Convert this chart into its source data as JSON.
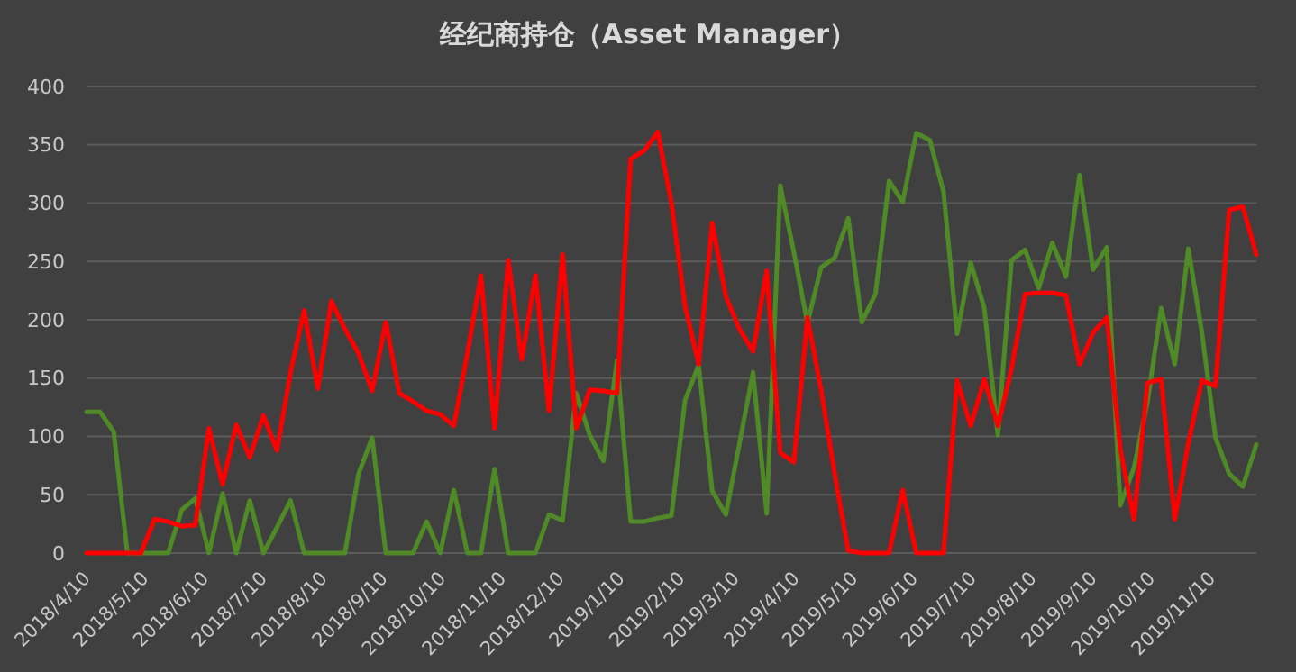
{
  "chart_data": {
    "type": "line",
    "title": "经纪商持仓（Asset Manager）",
    "x": [
      "2018-04-10",
      "2018-04-17",
      "2018-04-24",
      "2018-05-01",
      "2018-05-08",
      "2018-05-15",
      "2018-05-22",
      "2018-05-29",
      "2018-06-05",
      "2018-06-12",
      "2018-06-19",
      "2018-06-26",
      "2018-07-03",
      "2018-07-10",
      "2018-07-17",
      "2018-07-24",
      "2018-07-31",
      "2018-08-07",
      "2018-08-14",
      "2018-08-21",
      "2018-08-28",
      "2018-09-04",
      "2018-09-11",
      "2018-09-18",
      "2018-09-25",
      "2018-10-02",
      "2018-10-09",
      "2018-10-16",
      "2018-10-23",
      "2018-10-30",
      "2018-11-06",
      "2018-11-13",
      "2018-11-20",
      "2018-11-27",
      "2018-12-04",
      "2018-12-11",
      "2018-12-18",
      "2018-12-25",
      "2019-01-01",
      "2019-01-08",
      "2019-01-15",
      "2019-01-22",
      "2019-01-29",
      "2019-02-05",
      "2019-02-12",
      "2019-02-19",
      "2019-02-26",
      "2019-03-05",
      "2019-03-12",
      "2019-03-19",
      "2019-03-26",
      "2019-04-02",
      "2019-04-09",
      "2019-04-16",
      "2019-04-23",
      "2019-04-30",
      "2019-05-07",
      "2019-05-14",
      "2019-05-21",
      "2019-05-28",
      "2019-06-04",
      "2019-06-11",
      "2019-06-18",
      "2019-06-25",
      "2019-07-02",
      "2019-07-09",
      "2019-07-16",
      "2019-07-23",
      "2019-07-30",
      "2019-08-06",
      "2019-08-13",
      "2019-08-20",
      "2019-08-27",
      "2019-09-03",
      "2019-09-10",
      "2019-09-17",
      "2019-09-24",
      "2019-10-01",
      "2019-10-08",
      "2019-10-15",
      "2019-10-22",
      "2019-10-29",
      "2019-11-05",
      "2019-11-12",
      "2019-11-19",
      "2019-11-26",
      "2019-12-03"
    ],
    "series": [
      {
        "color": "#4f8a26",
        "values": [
          121,
          121,
          104,
          0,
          0,
          0,
          0,
          37,
          47,
          0,
          51,
          0,
          45,
          0,
          22,
          45,
          0,
          0,
          0,
          0,
          68,
          99,
          0,
          0,
          0,
          27,
          0,
          54,
          0,
          0,
          72,
          0,
          0,
          0,
          33,
          28,
          137,
          101,
          79,
          165,
          27,
          27,
          30,
          32,
          131,
          161,
          53,
          33,
          94,
          155,
          34,
          315,
          258,
          197,
          245,
          253,
          287,
          198,
          222,
          319,
          301,
          360,
          354,
          310,
          188,
          249,
          210,
          101,
          251,
          260,
          227,
          266,
          237,
          324,
          243,
          262,
          41,
          73,
          130,
          210,
          162,
          261,
          189,
          99,
          68,
          57,
          93
        ]
      },
      {
        "color": "#ff0000",
        "values": [
          0,
          0,
          0,
          0,
          0,
          29,
          27,
          23,
          24,
          107,
          59,
          110,
          82,
          118,
          88,
          155,
          208,
          141,
          216,
          192,
          171,
          139,
          198,
          137,
          130,
          122,
          119,
          109,
          171,
          238,
          107,
          251,
          166,
          238,
          122,
          256,
          107,
          140,
          139,
          137,
          338,
          345,
          361,
          300,
          212,
          162,
          283,
          220,
          192,
          173,
          242,
          86,
          78,
          202,
          140,
          68,
          2,
          0,
          0,
          0,
          54,
          0,
          0,
          0,
          148,
          109,
          149,
          109,
          158,
          222,
          223,
          223,
          221,
          162,
          189,
          202,
          89,
          29,
          146,
          149,
          29,
          94,
          148,
          143,
          294,
          297,
          256
        ]
      }
    ],
    "xlim": [
      "2018-04-10",
      "2019-12-03"
    ],
    "xticks": [
      {
        "value": "2018-04-10",
        "label": "2018/4/10"
      },
      {
        "value": "2018-05-10",
        "label": "2018/5/10"
      },
      {
        "value": "2018-06-10",
        "label": "2018/6/10"
      },
      {
        "value": "2018-07-10",
        "label": "2018/7/10"
      },
      {
        "value": "2018-08-10",
        "label": "2018/8/10"
      },
      {
        "value": "2018-09-10",
        "label": "2018/9/10"
      },
      {
        "value": "2018-10-10",
        "label": "2018/10/10"
      },
      {
        "value": "2018-11-10",
        "label": "2018/11/10"
      },
      {
        "value": "2018-12-10",
        "label": "2018/12/10"
      },
      {
        "value": "2019-01-10",
        "label": "2019/1/10"
      },
      {
        "value": "2019-02-10",
        "label": "2019/2/10"
      },
      {
        "value": "2019-03-10",
        "label": "2019/3/10"
      },
      {
        "value": "2019-04-10",
        "label": "2019/4/10"
      },
      {
        "value": "2019-05-10",
        "label": "2019/5/10"
      },
      {
        "value": "2019-06-10",
        "label": "2019/6/10"
      },
      {
        "value": "2019-07-10",
        "label": "2019/7/10"
      },
      {
        "value": "2019-08-10",
        "label": "2019/8/10"
      },
      {
        "value": "2019-09-10",
        "label": "2019/9/10"
      },
      {
        "value": "2019-10-10",
        "label": "2019/10/10"
      },
      {
        "value": "2019-11-10",
        "label": "2019/11/10"
      }
    ],
    "ylim": [
      0,
      400
    ],
    "yticks": [
      0,
      50,
      100,
      150,
      200,
      250,
      300,
      350,
      400
    ],
    "grid": "y",
    "marker": "none",
    "line_style": "solid"
  }
}
